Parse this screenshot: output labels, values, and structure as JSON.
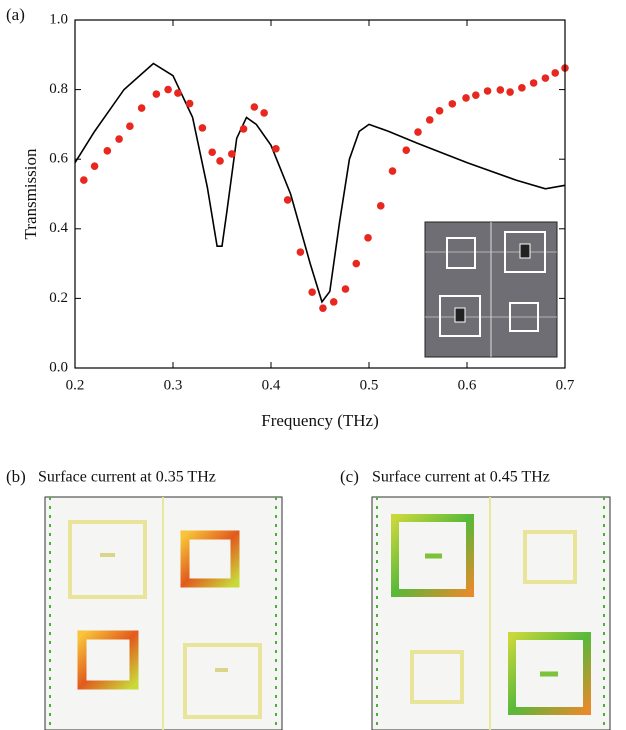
{
  "chart_data": {
    "type": "line",
    "panel_label": "(a)",
    "x_label": "Frequency (THz)",
    "y_label": "Transmission",
    "xlim": [
      0.2,
      0.7
    ],
    "xticks": [
      0.2,
      0.3,
      0.4,
      0.5,
      0.6,
      0.7
    ],
    "ylim": [
      0,
      1
    ],
    "yticks": [
      {
        "value": 0,
        "label": "0.0"
      },
      0.2,
      0.4,
      0.6,
      0.8,
      {
        "value": 1,
        "label": "1.0"
      }
    ],
    "series": [
      {
        "type": "line",
        "color": "#000000",
        "x": [
          0.2,
          0.22,
          0.25,
          0.28,
          0.3,
          0.32,
          0.335,
          0.345,
          0.35,
          0.355,
          0.365,
          0.375,
          0.385,
          0.4,
          0.42,
          0.44,
          0.452,
          0.46,
          0.47,
          0.48,
          0.49,
          0.5,
          0.52,
          0.55,
          0.6,
          0.65,
          0.68,
          0.7
        ],
        "values": [
          0.59,
          0.68,
          0.8,
          0.875,
          0.84,
          0.72,
          0.52,
          0.35,
          0.35,
          0.45,
          0.66,
          0.72,
          0.7,
          0.64,
          0.5,
          0.3,
          0.19,
          0.22,
          0.42,
          0.6,
          0.68,
          0.7,
          0.68,
          0.645,
          0.59,
          0.54,
          0.515,
          0.525
        ]
      },
      {
        "type": "scatter",
        "color": "#e8271f",
        "x": [
          0.209,
          0.22,
          0.233,
          0.245,
          0.256,
          0.268,
          0.283,
          0.295,
          0.305,
          0.317,
          0.33,
          0.34,
          0.348,
          0.36,
          0.372,
          0.383,
          0.393,
          0.405,
          0.417,
          0.43,
          0.442,
          0.453,
          0.464,
          0.476,
          0.487,
          0.499,
          0.512,
          0.524,
          0.538,
          0.55,
          0.562,
          0.572,
          0.585,
          0.599,
          0.609,
          0.621,
          0.634,
          0.644,
          0.656,
          0.668,
          0.68,
          0.69,
          0.7
        ],
        "values": [
          0.54,
          0.58,
          0.624,
          0.658,
          0.695,
          0.747,
          0.787,
          0.8,
          0.79,
          0.76,
          0.69,
          0.62,
          0.595,
          0.615,
          0.687,
          0.75,
          0.733,
          0.63,
          0.483,
          0.333,
          0.218,
          0.172,
          0.19,
          0.227,
          0.3,
          0.374,
          0.466,
          0.566,
          0.626,
          0.678,
          0.713,
          0.739,
          0.759,
          0.776,
          0.784,
          0.796,
          0.799,
          0.793,
          0.805,
          0.819,
          0.833,
          0.848,
          0.862
        ]
      }
    ],
    "panels": [
      {
        "label": "(b)",
        "title": "Surface current at 0.35 THz"
      },
      {
        "label": "(c)",
        "title": "Surface current at 0.45 THz"
      }
    ]
  }
}
